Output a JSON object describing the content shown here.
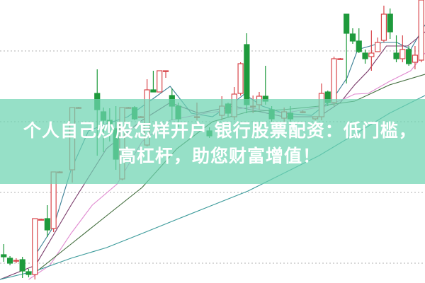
{
  "banner": {
    "line1": "个人自己炒股怎样开户 银行股票配资：低门槛，",
    "line2": "高杠杆，助您财富增值！"
  },
  "chart_data": {
    "type": "candlestick",
    "title": "",
    "xlabel": "",
    "ylabel": "",
    "grid": true,
    "ylim": [
      0,
      400
    ],
    "xlim": [
      -0.6,
      67.6
    ],
    "gridlines": [
      28,
      128,
      228,
      328
    ],
    "colors": {
      "up": "#d8454a",
      "down": "#1e9a3c",
      "grid": "#b0b0b0",
      "banner": "#6ed4b2"
    },
    "candles": [
      {
        "t": 0,
        "o": 40,
        "h": 55,
        "l": 30,
        "c": 37
      },
      {
        "t": 1,
        "o": 35,
        "h": 38,
        "l": 25,
        "c": 28
      },
      {
        "t": 2,
        "o": 32,
        "h": 35,
        "l": 28,
        "c": 32
      },
      {
        "t": 3,
        "o": 33,
        "h": 37,
        "l": 7,
        "c": 17
      },
      {
        "t": 4,
        "o": 16,
        "h": 20,
        "l": 8,
        "c": 12
      },
      {
        "t": 5,
        "o": 12,
        "h": 91,
        "l": 5,
        "c": 91
      },
      {
        "t": 6,
        "o": 90,
        "h": 91,
        "l": 89,
        "c": 90
      },
      {
        "t": 7,
        "o": 91,
        "h": 110,
        "l": 65,
        "c": 75
      },
      {
        "t": 8,
        "o": 77,
        "h": 157,
        "l": 72,
        "c": 157
      },
      {
        "t": 9,
        "o": 157,
        "h": 158,
        "l": 156,
        "c": 157
      },
      {
        "t": 11,
        "o": 160,
        "h": 248,
        "l": 142,
        "c": 248
      },
      {
        "t": 12,
        "o": 248,
        "h": 249,
        "l": 247,
        "c": 248
      },
      {
        "t": 15,
        "o": 268,
        "h": 302,
        "l": 180,
        "c": 245
      },
      {
        "t": 16,
        "o": 242,
        "h": 248,
        "l": 185,
        "c": 230
      },
      {
        "t": 17,
        "o": 230,
        "h": 247,
        "l": 200,
        "c": 225
      },
      {
        "t": 18,
        "o": 218,
        "h": 250,
        "l": 160,
        "c": 175
      },
      {
        "t": 19,
        "o": 147,
        "h": 248,
        "l": 145,
        "c": 248
      },
      {
        "t": 20,
        "o": 248,
        "h": 249,
        "l": 247,
        "c": 248
      },
      {
        "t": 21,
        "o": 248,
        "h": 250,
        "l": 230,
        "c": 232
      },
      {
        "t": 22,
        "o": 235,
        "h": 236,
        "l": 234,
        "c": 235
      },
      {
        "t": 23,
        "o": 195,
        "h": 288,
        "l": 193,
        "c": 273
      },
      {
        "t": 24,
        "o": 273,
        "h": 300,
        "l": 270,
        "c": 270
      },
      {
        "t": 25,
        "o": 270,
        "h": 300,
        "l": 270,
        "c": 300
      },
      {
        "t": 26,
        "o": 300,
        "h": 300,
        "l": 290,
        "c": 300
      },
      {
        "t": 27,
        "o": 265,
        "h": 275,
        "l": 230,
        "c": 250
      },
      {
        "t": 28,
        "o": 250,
        "h": 255,
        "l": 220,
        "c": 232
      },
      {
        "t": 31,
        "o": 235,
        "h": 255,
        "l": 230,
        "c": 235
      },
      {
        "t": 33,
        "o": 215,
        "h": 220,
        "l": 205,
        "c": 208
      },
      {
        "t": 35,
        "o": 237,
        "h": 264,
        "l": 230,
        "c": 250
      },
      {
        "t": 36,
        "o": 253,
        "h": 255,
        "l": 235,
        "c": 240
      },
      {
        "t": 37,
        "o": 235,
        "h": 277,
        "l": 230,
        "c": 267
      },
      {
        "t": 38,
        "o": 268,
        "h": 312,
        "l": 265,
        "c": 310
      },
      {
        "t": 39,
        "o": 337,
        "h": 353,
        "l": 240,
        "c": 252
      },
      {
        "t": 40,
        "o": 250,
        "h": 265,
        "l": 240,
        "c": 250
      },
      {
        "t": 41,
        "o": 252,
        "h": 270,
        "l": 245,
        "c": 264
      },
      {
        "t": 42,
        "o": 264,
        "h": 307,
        "l": 252,
        "c": 257
      },
      {
        "t": 43,
        "o": 245,
        "h": 250,
        "l": 225,
        "c": 232
      },
      {
        "t": 45,
        "o": 233,
        "h": 248,
        "l": 228,
        "c": 242
      },
      {
        "t": 46,
        "o": 240,
        "h": 250,
        "l": 225,
        "c": 232
      },
      {
        "t": 48,
        "o": 242,
        "h": 244,
        "l": 240,
        "c": 242
      },
      {
        "t": 50,
        "o": 232,
        "h": 235,
        "l": 230,
        "c": 235
      },
      {
        "t": 51,
        "o": 235,
        "h": 282,
        "l": 230,
        "c": 268
      },
      {
        "t": 52,
        "o": 270,
        "h": 272,
        "l": 250,
        "c": 255
      },
      {
        "t": 53,
        "o": 255,
        "h": 320,
        "l": 250,
        "c": 317
      },
      {
        "t": 54,
        "o": 317,
        "h": 318,
        "l": 316,
        "c": 317
      },
      {
        "t": 55,
        "o": 380,
        "h": 380,
        "l": 282,
        "c": 353
      },
      {
        "t": 56,
        "o": 352,
        "h": 360,
        "l": 338,
        "c": 342
      },
      {
        "t": 57,
        "o": 342,
        "h": 360,
        "l": 325,
        "c": 327
      },
      {
        "t": 58,
        "o": 325,
        "h": 330,
        "l": 310,
        "c": 317
      },
      {
        "t": 59,
        "o": 320,
        "h": 357,
        "l": 300,
        "c": 325
      },
      {
        "t": 60,
        "o": 327,
        "h": 347,
        "l": 327,
        "c": 340
      },
      {
        "t": 61,
        "o": 343,
        "h": 392,
        "l": 340,
        "c": 380
      },
      {
        "t": 62,
        "o": 380,
        "h": 388,
        "l": 345,
        "c": 355
      },
      {
        "t": 63,
        "o": 325,
        "h": 350,
        "l": 312,
        "c": 317
      },
      {
        "t": 64,
        "o": 317,
        "h": 350,
        "l": 312,
        "c": 330
      },
      {
        "t": 65,
        "o": 330,
        "h": 335,
        "l": 307,
        "c": 310
      },
      {
        "t": 66,
        "o": 312,
        "h": 335,
        "l": 302,
        "c": 322
      },
      {
        "t": 67,
        "o": 315,
        "h": 400,
        "l": 312,
        "c": 400
      }
    ],
    "lines": [
      {
        "color": "#3a7f95",
        "points": [
          [
            5.1,
            40
          ],
          [
            8,
            80
          ],
          [
            10.8,
            160
          ],
          [
            13.6,
            215
          ],
          [
            16.5,
            225
          ],
          [
            19.9,
            235
          ],
          [
            23.9,
            260
          ],
          [
            26.7,
            278
          ],
          [
            30.1,
            240
          ],
          [
            33.5,
            235
          ],
          [
            36.9,
            255
          ],
          [
            38.6,
            267
          ],
          [
            41.5,
            250
          ],
          [
            44.9,
            240
          ],
          [
            49.4,
            237
          ],
          [
            52.8,
            260
          ],
          [
            55.1,
            290
          ],
          [
            56.8,
            330
          ],
          [
            60.8,
            340
          ],
          [
            63.1,
            340
          ],
          [
            65.3,
            330
          ],
          [
            67.6,
            365
          ]
        ]
      },
      {
        "color": "#7a3a6a",
        "points": [
          [
            -0.6,
            5
          ],
          [
            5.1,
            25
          ],
          [
            10.8,
            110
          ],
          [
            16.5,
            190
          ],
          [
            22.2,
            230
          ],
          [
            26.7,
            255
          ],
          [
            31.3,
            240
          ],
          [
            36.9,
            250
          ],
          [
            44.9,
            235
          ],
          [
            50.6,
            235
          ],
          [
            54,
            255
          ],
          [
            56.3,
            280
          ],
          [
            58.5,
            300
          ],
          [
            61.4,
            335
          ],
          [
            64.8,
            335
          ],
          [
            67.6,
            355
          ]
        ]
      },
      {
        "color": "#e08ad0",
        "points": [
          [
            4,
            5
          ],
          [
            7.4,
            25
          ],
          [
            10.8,
            70
          ],
          [
            14.2,
            110
          ],
          [
            18.2,
            140
          ],
          [
            22.2,
            200
          ],
          [
            26.7,
            230
          ],
          [
            32.4,
            240
          ],
          [
            39.2,
            248
          ],
          [
            44.9,
            240
          ],
          [
            51.7,
            250
          ],
          [
            55.1,
            262
          ],
          [
            56.3,
            267
          ],
          [
            58.5,
            268
          ],
          [
            61.9,
            285
          ],
          [
            65.3,
            300
          ],
          [
            67.6,
            325
          ]
        ]
      },
      {
        "color": "#3f6b3a",
        "points": [
          [
            5.1,
            15
          ],
          [
            10.8,
            55
          ],
          [
            16.5,
            95
          ],
          [
            22.2,
            135
          ],
          [
            27.8,
            190
          ],
          [
            33.5,
            228
          ],
          [
            39.2,
            242
          ],
          [
            44.9,
            245
          ],
          [
            50.6,
            250
          ],
          [
            56.3,
            257
          ],
          [
            61.9,
            280
          ],
          [
            67.6,
            295
          ]
        ]
      },
      {
        "color": "#3a9a9a",
        "points": [
          [
            -0.6,
            5
          ],
          [
            5.1,
            17
          ],
          [
            10.8,
            35
          ],
          [
            16.5,
            50
          ],
          [
            22.2,
            70
          ],
          [
            27.8,
            90
          ],
          [
            33.5,
            110
          ],
          [
            39.2,
            130
          ],
          [
            44.9,
            155
          ],
          [
            50.6,
            180
          ],
          [
            56.3,
            210
          ],
          [
            61.9,
            240
          ],
          [
            67.6,
            265
          ]
        ]
      }
    ]
  }
}
